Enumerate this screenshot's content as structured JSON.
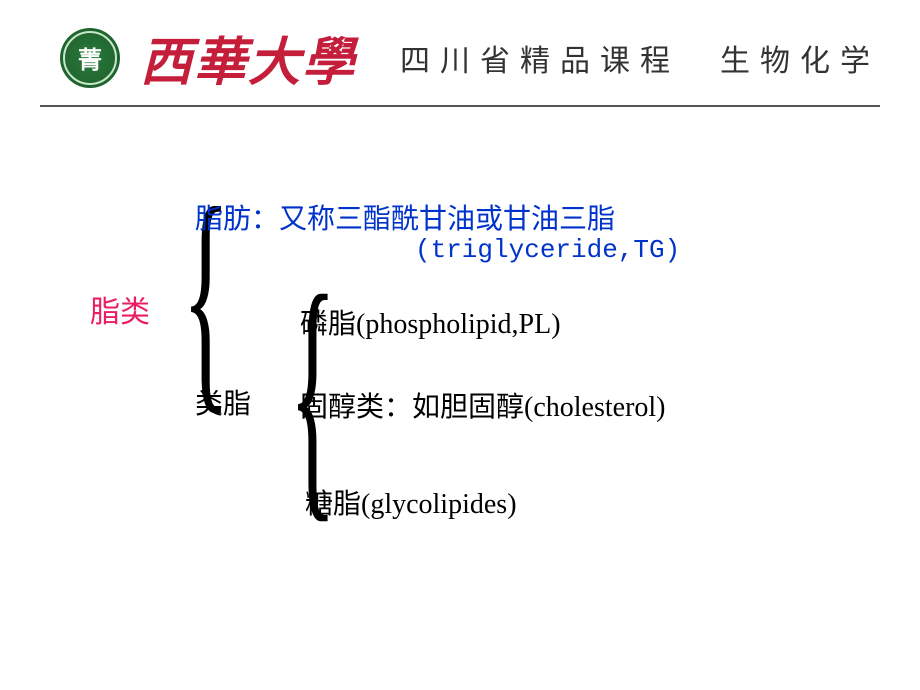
{
  "header": {
    "logo_text": "菁",
    "university_name": "西華大學",
    "course_title": "四川省精品课程　生物化学"
  },
  "diagram": {
    "root": "脂类",
    "root_color": "#e91e63",
    "level1": {
      "item1": {
        "text": "脂肪：又称三酯酰甘油或甘油三脂",
        "subtext": "(triglyceride,TG)",
        "color": "#0033cc"
      },
      "item2": {
        "text": "类脂",
        "color": "#000000"
      }
    },
    "level2": {
      "item1": "磷脂(phospholipid,PL)",
      "item2": "固醇类：如胆固醇(cholesterol)",
      "item3": "糖脂(glycolipides)"
    },
    "fonts": {
      "root_size": 30,
      "item_size": 28,
      "subtext_size": 26
    },
    "colors": {
      "background": "#ffffff",
      "text_default": "#000000",
      "divider": "#555555",
      "logo_bg": "#2a7a3a",
      "univ_name": "#c41e3a"
    }
  }
}
